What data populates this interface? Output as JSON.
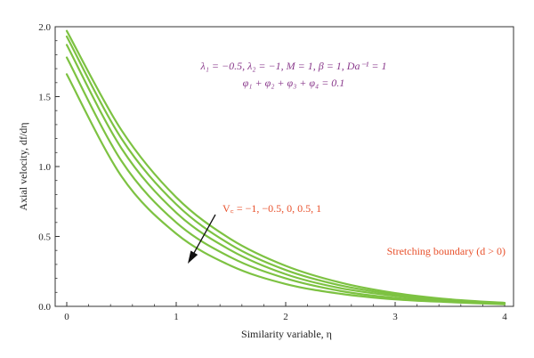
{
  "chart_data": {
    "type": "line",
    "xlabel": "Similarity variable, η",
    "ylabel": "Axial velocity, df/dη",
    "xlim": [
      0,
      4
    ],
    "ylim": [
      0,
      2
    ],
    "x_ticks": [
      "0",
      "1",
      "2",
      "3",
      "4"
    ],
    "y_ticks": [
      "0.0",
      "0.5",
      "1.0",
      "1.5",
      "2.0"
    ],
    "grid": false,
    "series_color": "#7dc242",
    "series": [
      {
        "values": [
          [
            0,
            1.66
          ],
          [
            0.5,
            0.93
          ],
          [
            1.0,
            0.52
          ],
          [
            1.5,
            0.29
          ],
          [
            2.0,
            0.16
          ],
          [
            2.5,
            0.09
          ],
          [
            3.0,
            0.05
          ],
          [
            3.5,
            0.03
          ],
          [
            4.0,
            0.015
          ]
        ]
      },
      {
        "values": [
          [
            0,
            1.78
          ],
          [
            0.5,
            1.04
          ],
          [
            1.0,
            0.6
          ],
          [
            1.5,
            0.35
          ],
          [
            2.0,
            0.2
          ],
          [
            2.5,
            0.11
          ],
          [
            3.0,
            0.06
          ],
          [
            3.5,
            0.035
          ],
          [
            4.0,
            0.018
          ]
        ]
      },
      {
        "values": [
          [
            0,
            1.87
          ],
          [
            0.5,
            1.13
          ],
          [
            1.0,
            0.67
          ],
          [
            1.5,
            0.4
          ],
          [
            2.0,
            0.23
          ],
          [
            2.5,
            0.13
          ],
          [
            3.0,
            0.075
          ],
          [
            3.5,
            0.04
          ],
          [
            4.0,
            0.02
          ]
        ]
      },
      {
        "values": [
          [
            0,
            1.93
          ],
          [
            0.5,
            1.2
          ],
          [
            1.0,
            0.73
          ],
          [
            1.5,
            0.44
          ],
          [
            2.0,
            0.26
          ],
          [
            2.5,
            0.15
          ],
          [
            3.0,
            0.085
          ],
          [
            3.5,
            0.045
          ],
          [
            4.0,
            0.022
          ]
        ]
      },
      {
        "values": [
          [
            0,
            1.97
          ],
          [
            0.5,
            1.26
          ],
          [
            1.0,
            0.78
          ],
          [
            1.5,
            0.48
          ],
          [
            2.0,
            0.29
          ],
          [
            2.5,
            0.17
          ],
          [
            3.0,
            0.095
          ],
          [
            3.5,
            0.05
          ],
          [
            4.0,
            0.025
          ]
        ]
      }
    ],
    "annotations": {
      "params_line1": "λ₁ = −0.5, λ₂ = −1, M = 1, β = 1, Da⁻¹ = 1",
      "params_line2": "φ₁ + φ₂ + φ₃ + φ₄ = 0.1",
      "vc_label": "V꜀ = −1, −0.5, 0, 0.5, 1",
      "boundary_label": "Stretching boundary (d > 0)",
      "params_color": "#8a3a8c",
      "label_color": "#e8512c"
    }
  }
}
